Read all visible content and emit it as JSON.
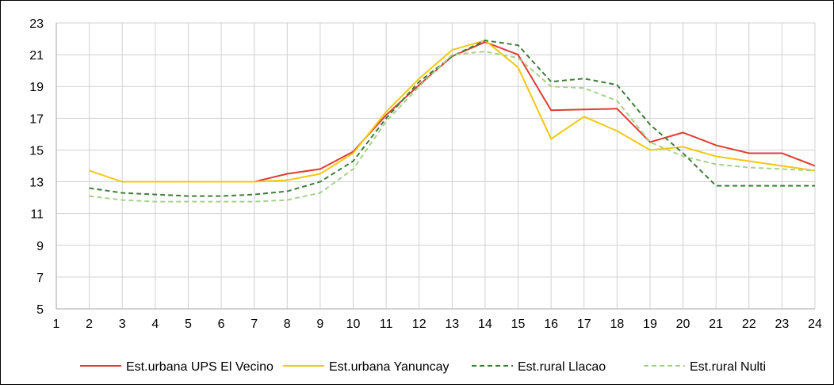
{
  "chart_data": {
    "type": "line",
    "title": "",
    "xlabel": "",
    "ylabel": "",
    "x": [
      1,
      2,
      3,
      4,
      5,
      6,
      7,
      8,
      9,
      10,
      11,
      12,
      13,
      14,
      15,
      16,
      17,
      18,
      19,
      20,
      21,
      22,
      23,
      24
    ],
    "ylim": [
      5,
      23
    ],
    "yticks": [
      5,
      7,
      9,
      11,
      13,
      15,
      17,
      19,
      21,
      23
    ],
    "grid": true,
    "legend_position": "bottom",
    "series": [
      {
        "name": "Est.urbana UPS El Vecino",
        "color": "#e03c31",
        "style": "solid",
        "x": [
          7,
          8,
          9,
          10,
          11,
          12,
          13,
          14,
          15,
          16,
          17,
          18,
          19,
          20,
          21,
          22,
          23,
          24
        ],
        "values": [
          13.0,
          13.5,
          13.8,
          14.9,
          17.2,
          19.1,
          20.9,
          21.8,
          21.0,
          17.5,
          17.55,
          17.6,
          15.5,
          16.1,
          15.3,
          14.8,
          14.8,
          14.0
        ]
      },
      {
        "name": "Est.urbana Yanuncay",
        "color": "#f2c80f",
        "style": "solid",
        "x": [
          2,
          3,
          4,
          5,
          6,
          7,
          8,
          9,
          10,
          11,
          12,
          13,
          14,
          15,
          16,
          17,
          18,
          19,
          20,
          21,
          22,
          23,
          24
        ],
        "values": [
          13.7,
          13.0,
          13.0,
          13.0,
          13.0,
          13.0,
          13.1,
          13.5,
          14.8,
          17.4,
          19.5,
          21.3,
          21.9,
          20.2,
          15.7,
          17.1,
          16.2,
          15.0,
          15.2,
          14.6,
          14.3,
          14.0,
          13.7
        ]
      },
      {
        "name": "Est.rural Llacao",
        "color": "#3f7d3a",
        "style": "dashed",
        "x": [
          2,
          3,
          4,
          5,
          6,
          7,
          8,
          9,
          10,
          11,
          12,
          13,
          14,
          15,
          16,
          17,
          18,
          19,
          20,
          21,
          22,
          23,
          24
        ],
        "values": [
          12.6,
          12.3,
          12.2,
          12.1,
          12.1,
          12.2,
          12.4,
          13.0,
          14.3,
          17.0,
          19.3,
          20.9,
          21.9,
          21.6,
          19.3,
          19.5,
          19.1,
          16.6,
          14.8,
          12.75,
          12.75,
          12.75,
          12.75
        ]
      },
      {
        "name": "Est.rural Nulti",
        "color": "#a8d08d",
        "style": "dashed",
        "x": [
          2,
          3,
          4,
          5,
          6,
          7,
          8,
          9,
          10,
          11,
          12,
          13,
          14,
          15,
          16,
          17,
          18,
          19,
          20,
          21,
          22,
          23,
          24
        ],
        "values": [
          12.1,
          11.85,
          11.75,
          11.75,
          11.75,
          11.75,
          11.85,
          12.3,
          13.8,
          16.8,
          19.0,
          21.0,
          21.2,
          20.8,
          19.0,
          18.9,
          18.1,
          15.5,
          14.6,
          14.1,
          13.9,
          13.8,
          13.7
        ]
      }
    ]
  }
}
